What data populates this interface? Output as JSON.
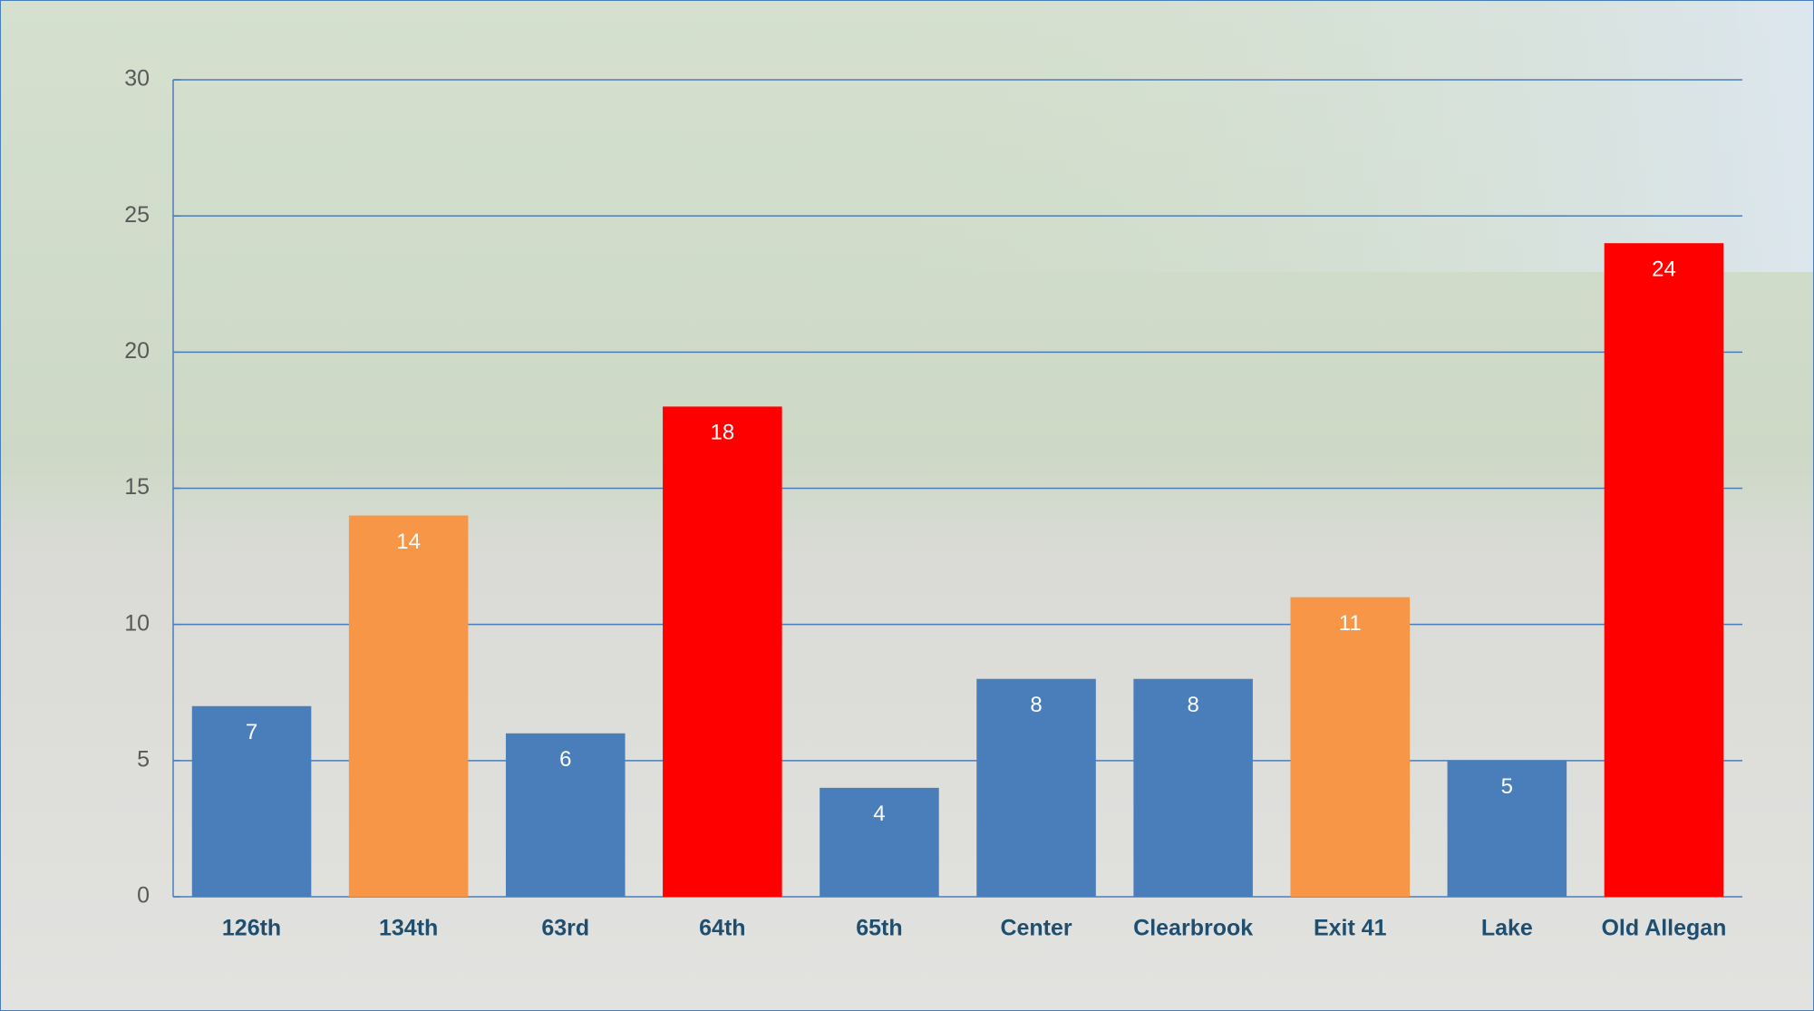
{
  "chart_data": {
    "type": "bar",
    "categories": [
      "126th",
      "134th",
      "63rd",
      "64th",
      "65th",
      "Center",
      "Clearbrook",
      "Exit 41",
      "Lake",
      "Old Allegan"
    ],
    "values": [
      7,
      14,
      6,
      18,
      4,
      8,
      8,
      11,
      5,
      24
    ],
    "colors": [
      "#4a7ebb",
      "#f79646",
      "#4a7ebb",
      "#ff0000",
      "#4a7ebb",
      "#4a7ebb",
      "#4a7ebb",
      "#f79646",
      "#4a7ebb",
      "#ff0000"
    ],
    "ylim": [
      0,
      30
    ],
    "yticks": [
      0,
      5,
      10,
      15,
      20,
      25,
      30
    ],
    "grid": true,
    "grid_color": "#4a7ebb"
  }
}
